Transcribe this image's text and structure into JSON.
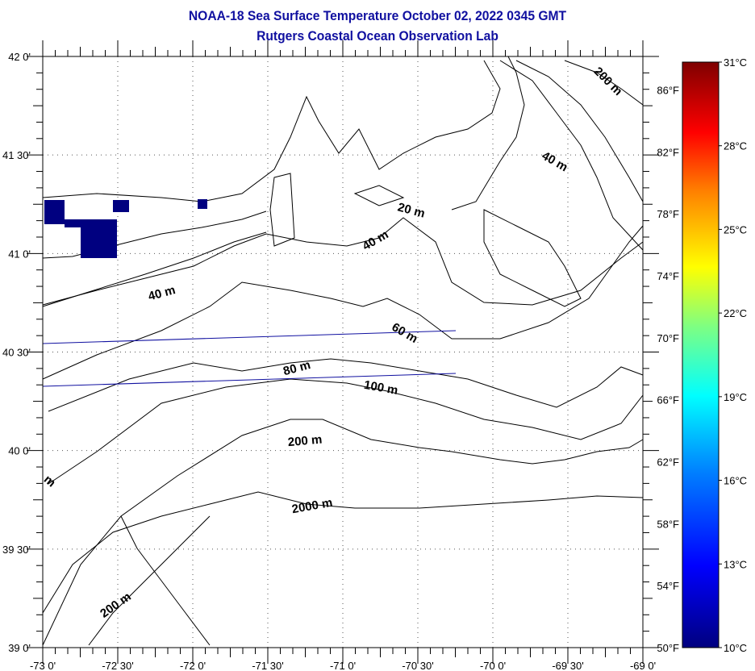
{
  "header": {
    "title": "NOAA-18 Sea Surface Temperature October 02, 2022 0345 GMT",
    "subtitle": "Rutgers Coastal Ocean Observation Lab"
  },
  "map": {
    "lon_range": [
      -73,
      -69
    ],
    "lat_range": [
      39,
      42
    ],
    "lon_labels": [
      "-73 0'",
      "-72 30'",
      "-72 0'",
      "-71 30'",
      "-71 0'",
      "-70 30'",
      "-70 0'",
      "-69 30'",
      "-69 0'"
    ],
    "lat_labels": [
      "42 0'",
      "41 30'",
      "41 0'",
      "40 30'",
      "40 0'",
      "39 30'",
      "39 0'"
    ],
    "fahrenheit_labels": [
      "86°F",
      "82°F",
      "78°F",
      "74°F",
      "70°F",
      "66°F",
      "62°F",
      "58°F",
      "54°F",
      "50°F"
    ],
    "contour_labels": [
      {
        "text": "200 m",
        "lon": -69.25,
        "lat": 41.86,
        "angle": 45
      },
      {
        "text": "40 m",
        "lon": -69.6,
        "lat": 41.45,
        "angle": 30
      },
      {
        "text": "20 m",
        "lon": -70.55,
        "lat": 41.2,
        "angle": 15
      },
      {
        "text": "40 m",
        "lon": -70.77,
        "lat": 41.05,
        "angle": -30
      },
      {
        "text": "40 m",
        "lon": -72.2,
        "lat": 40.78,
        "angle": -15
      },
      {
        "text": "60 m",
        "lon": -70.6,
        "lat": 40.58,
        "angle": 30
      },
      {
        "text": "80 m",
        "lon": -71.3,
        "lat": 40.4,
        "angle": -15
      },
      {
        "text": "100 m",
        "lon": -70.75,
        "lat": 40.3,
        "angle": 10
      },
      {
        "text": "200 m",
        "lon": -71.25,
        "lat": 40.03,
        "angle": -5
      },
      {
        "text": "2000 m",
        "lon": -71.2,
        "lat": 39.7,
        "angle": -10
      },
      {
        "text": "200 m",
        "lon": -72.5,
        "lat": 39.2,
        "angle": -35
      },
      {
        "text": "m",
        "lon": -72.97,
        "lat": 39.83,
        "angle": 40
      }
    ]
  },
  "colorbar": {
    "celsius_labels": [
      "31°C",
      "28°C",
      "25°C",
      "22°C",
      "19°C",
      "16°C",
      "13°C",
      "10°C"
    ],
    "range_c": [
      10,
      31
    ],
    "colors": [
      "#00007f",
      "#0000ff",
      "#0080ff",
      "#00ffff",
      "#80ff80",
      "#ffff00",
      "#ff8000",
      "#ff0000",
      "#7f0000"
    ]
  }
}
